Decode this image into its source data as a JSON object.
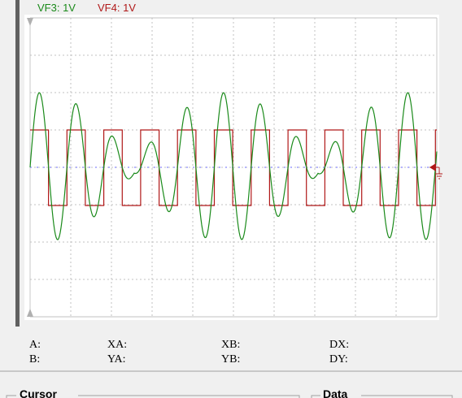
{
  "channels": [
    {
      "label": "VF3: 1V",
      "color": "#1a8a1a"
    },
    {
      "label": "VF4: 1V",
      "color": "#b01818"
    }
  ],
  "readouts": [
    [
      "A:",
      "XA:",
      "XB:",
      "DX:"
    ],
    [
      "B:",
      "YA:",
      "YB:",
      "DY:"
    ]
  ],
  "groups": {
    "cursor": "Cursor",
    "data": "Data"
  }
}
